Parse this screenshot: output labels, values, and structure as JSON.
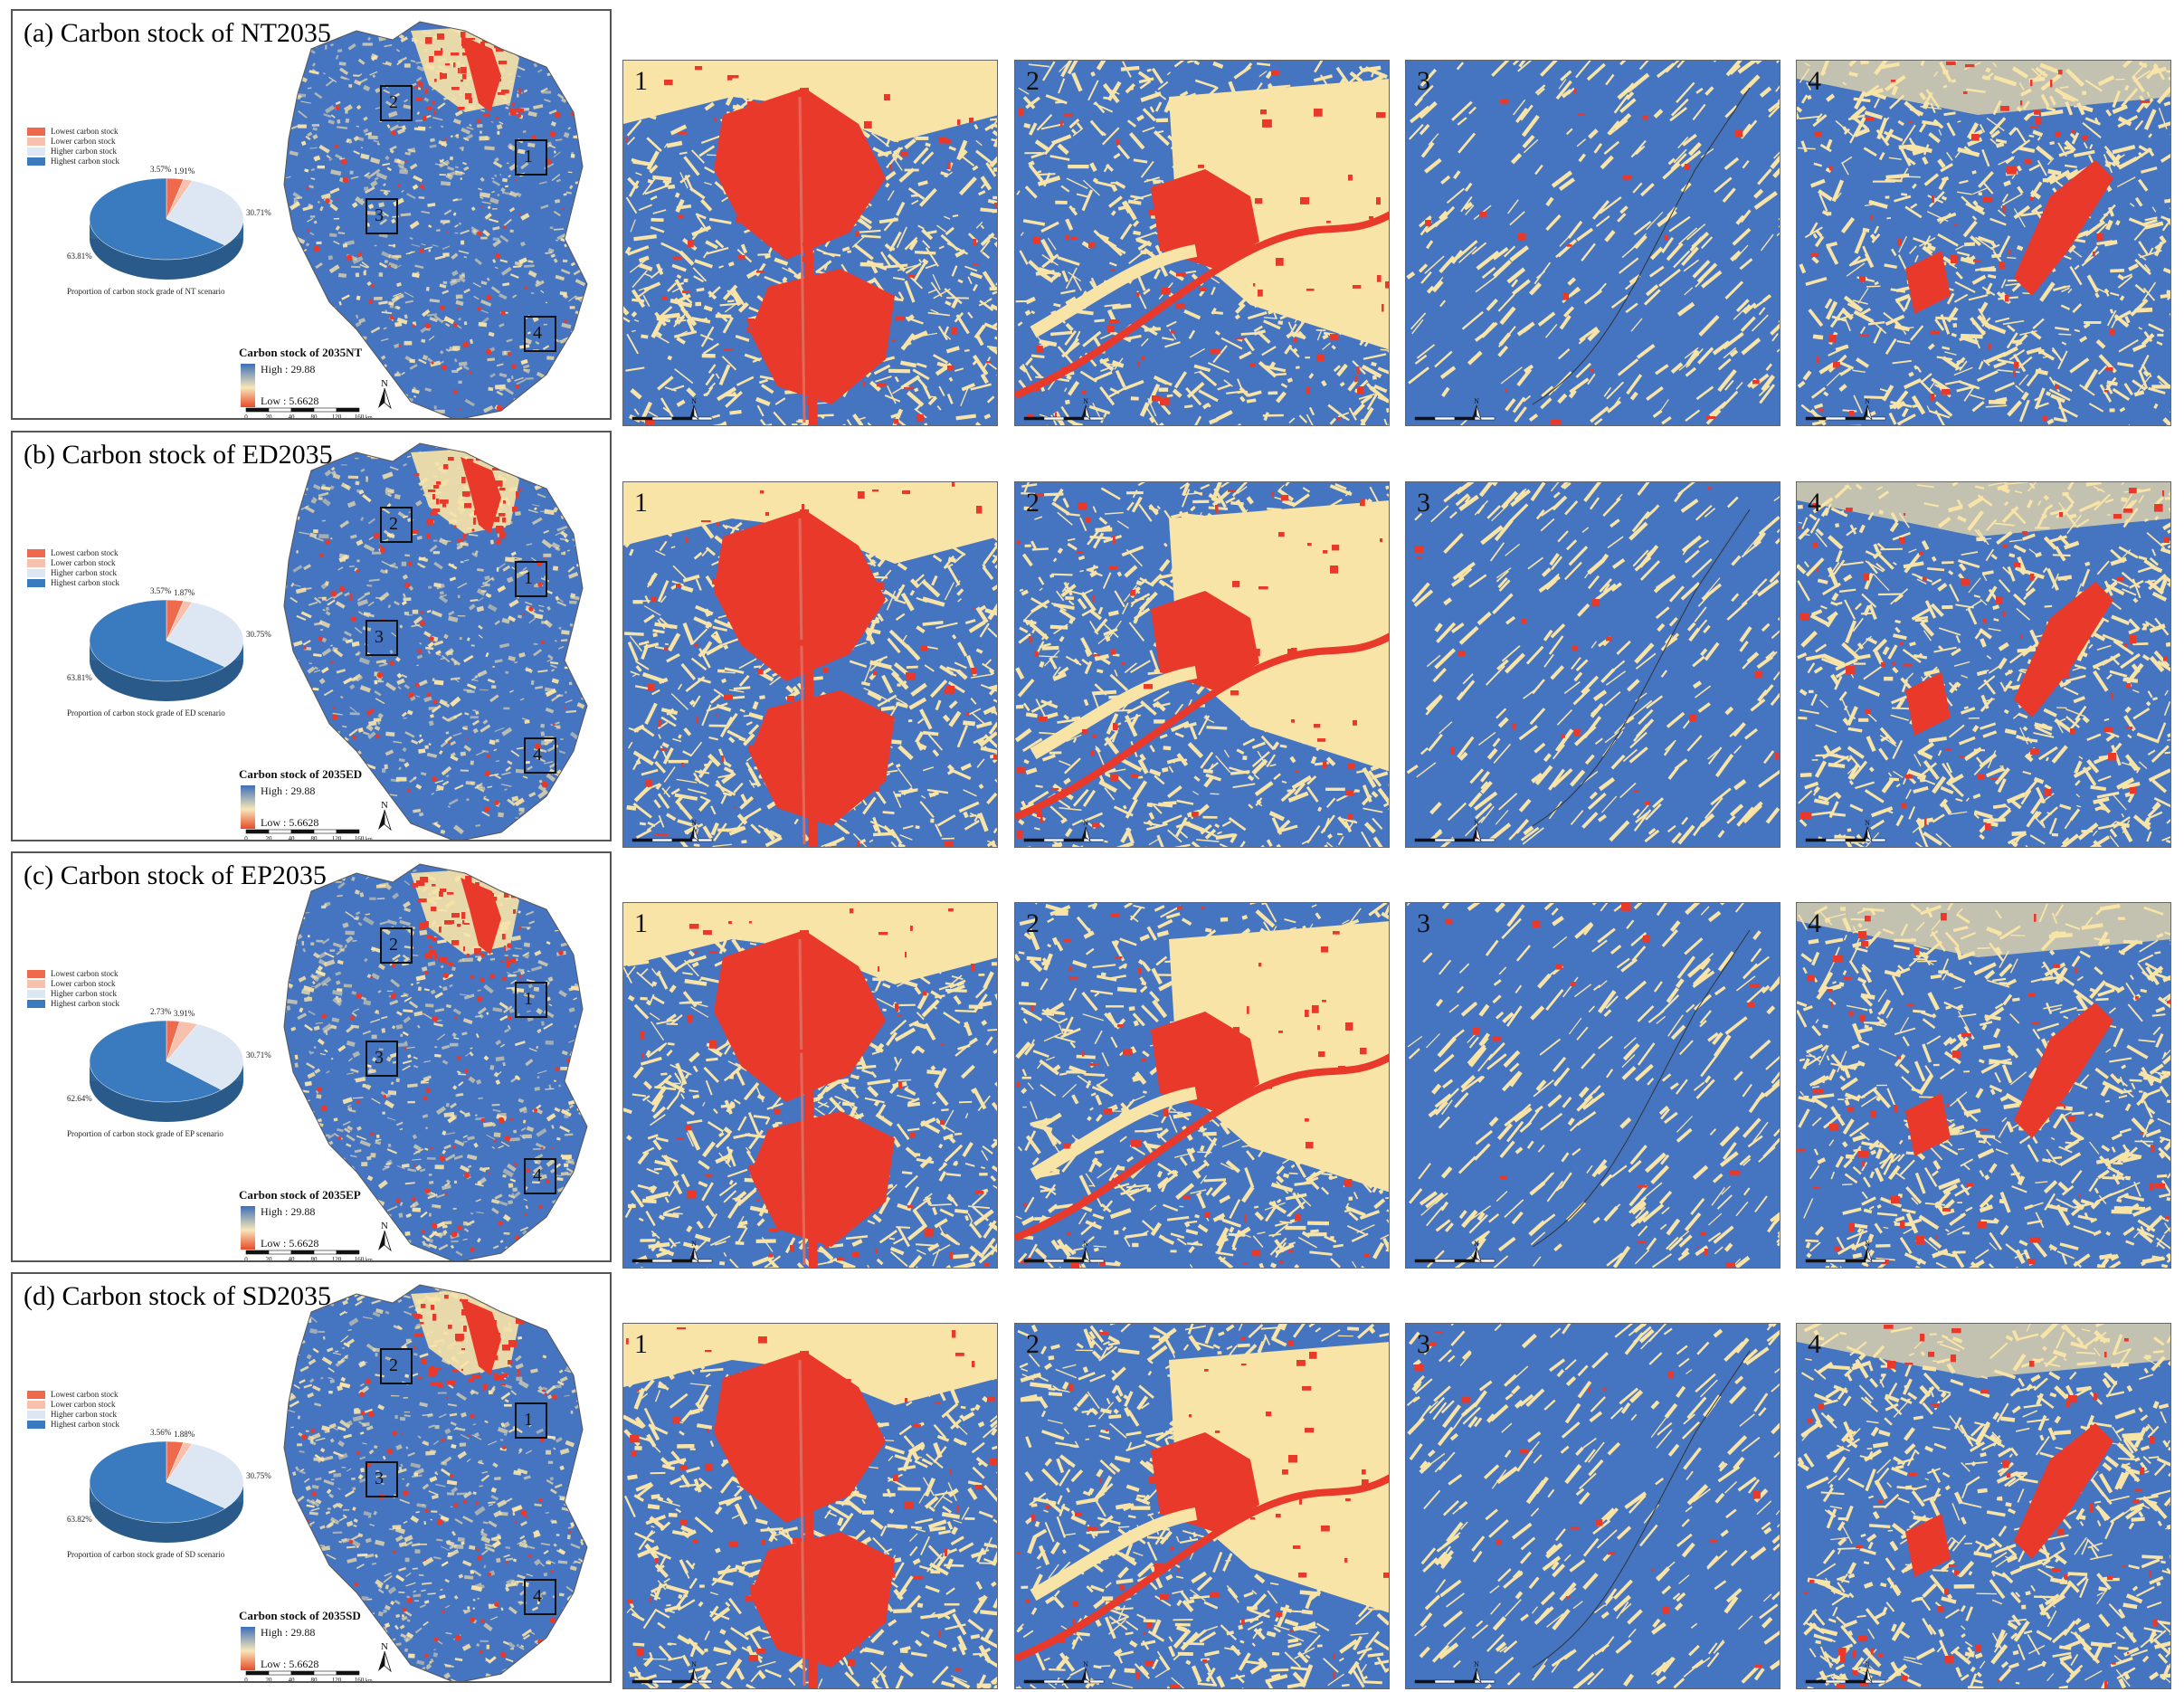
{
  "colors": {
    "highest": "#4574c1",
    "higher": "#f9e4a8",
    "lower": "#f8b79c",
    "lowest": "#e9392b",
    "legend_lowest": "#ef6a4c",
    "legend_lower": "#f7c1ad",
    "legend_higher": "#dde6f3",
    "legend_highest": "#3a7bbf"
  },
  "rows": [
    {
      "title": "(a) Carbon stock of NT2035",
      "legend": [
        "Lowest carbon stock",
        "Lower carbon stock",
        "Higher carbon stock",
        "Highest carbon stock"
      ],
      "pie": {
        "lowest": "3.57%",
        "lower": "1.91%",
        "higher": "30.71%",
        "highest": "63.81%"
      },
      "caption": "Proportion of carbon stock grade of NT scenario",
      "colorbar_title": "Carbon stock of 2035NT",
      "high": "High : 29.88",
      "low": "Low : 5.6628"
    },
    {
      "title": "(b) Carbon stock of ED2035",
      "legend": [
        "Lowest carbon stock",
        "Lower carbon stock",
        "Higher carbon stock",
        "Highest carbon stock"
      ],
      "pie": {
        "lowest": "3.57%",
        "lower": "1.87%",
        "higher": "30.75%",
        "highest": "63.81%"
      },
      "caption": "Proportion of carbon stock grade of ED scenario",
      "colorbar_title": "Carbon stock of 2035ED",
      "high": "High : 29.88",
      "low": "Low : 5.6628"
    },
    {
      "title": "(c) Carbon stock of EP2035",
      "legend": [
        "Lowest carbon stock",
        "Lower carbon stock",
        "Higher carbon stock",
        "Highest carbon stock"
      ],
      "pie": {
        "lowest": "2.73%",
        "lower": "3.91%",
        "higher": "30.71%",
        "highest": "62.64%"
      },
      "caption": "Proportion of carbon stock grade of EP scenario",
      "colorbar_title": "Carbon stock of 2035EP",
      "high": "High : 29.88",
      "low": "Low : 5.6628"
    },
    {
      "title": "(d) Carbon stock of SD2035",
      "legend": [
        "Lowest carbon stock",
        "Lower carbon stock",
        "Higher carbon stock",
        "Highest carbon stock"
      ],
      "pie": {
        "lowest": "3.56%",
        "lower": "1.88%",
        "higher": "30.75%",
        "highest": "63.82%"
      },
      "caption": "Proportion of carbon stock grade of SD scenario",
      "colorbar_title": "Carbon stock of 2035SD",
      "high": "High : 29.88",
      "low": "Low : 5.6628"
    }
  ],
  "zoom_labels": [
    "1",
    "2",
    "3",
    "4"
  ],
  "north_label": "N",
  "scale_ticks": [
    "0",
    "20",
    "40",
    "80",
    "120",
    "160"
  ],
  "scale_unit": "km"
}
